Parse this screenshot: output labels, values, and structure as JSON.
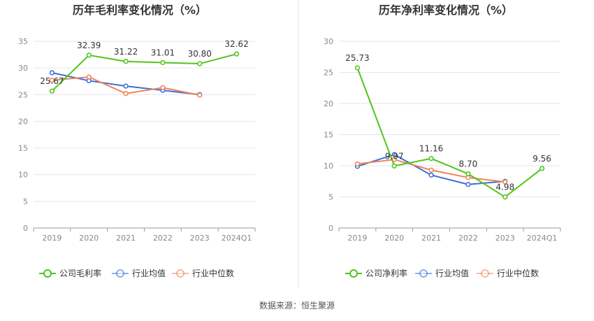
{
  "chart_data": [
    {
      "type": "line",
      "title": "历年毛利率变化情况（%）",
      "categories": [
        "2019",
        "2020",
        "2021",
        "2022",
        "2023",
        "2024Q1"
      ],
      "ylim": [
        0,
        35
      ],
      "yticks": [
        0,
        5,
        10,
        15,
        20,
        25,
        30,
        35
      ],
      "grid": true,
      "legend_position": "bottom",
      "series": [
        {
          "name": "公司毛利率",
          "color": "#52c41a",
          "labeled": true,
          "values": [
            25.67,
            32.39,
            31.22,
            31.01,
            30.8,
            32.62
          ]
        },
        {
          "name": "行业均值",
          "color": "#3b6fd8",
          "labeled": false,
          "values": [
            29.1,
            27.6,
            26.6,
            25.8,
            25.0,
            null
          ]
        },
        {
          "name": "行业中位数",
          "color": "#f0845a",
          "labeled": false,
          "values": [
            27.7,
            28.3,
            25.2,
            26.3,
            24.9,
            null
          ]
        }
      ]
    },
    {
      "type": "line",
      "title": "历年净利率变化情况（%）",
      "categories": [
        "2019",
        "2020",
        "2021",
        "2022",
        "2023",
        "2024Q1"
      ],
      "ylim": [
        0,
        30
      ],
      "yticks": [
        0,
        5,
        10,
        15,
        20,
        25,
        30
      ],
      "grid": true,
      "legend_position": "bottom",
      "series": [
        {
          "name": "公司净利率",
          "color": "#52c41a",
          "labeled": true,
          "values": [
            25.73,
            9.97,
            11.16,
            8.7,
            4.98,
            9.56
          ]
        },
        {
          "name": "行业均值",
          "color": "#3b6fd8",
          "labeled": false,
          "values": [
            9.9,
            11.8,
            8.5,
            7.0,
            7.5,
            null
          ]
        },
        {
          "name": "行业中位数",
          "color": "#f0845a",
          "labeled": false,
          "values": [
            10.3,
            11.0,
            9.3,
            8.1,
            7.4,
            null
          ]
        }
      ]
    }
  ],
  "source_text": "数据来源：恒生聚源"
}
